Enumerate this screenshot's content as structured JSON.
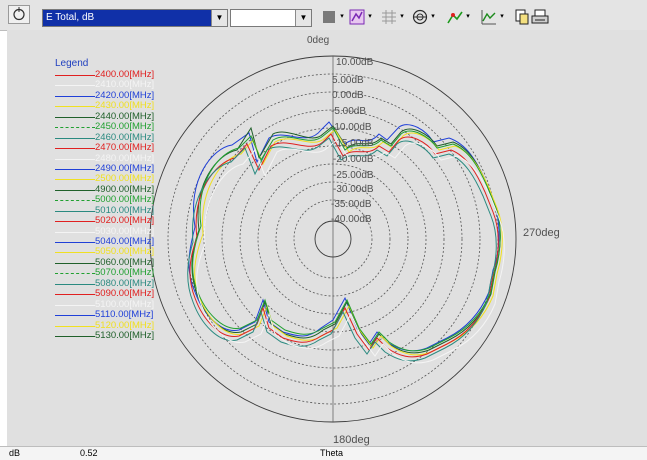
{
  "toolbar": {
    "pick_button_icon": "cursor-pick-icon",
    "quantity_select": {
      "value": "E Total, dB",
      "arrow": "▼"
    },
    "secondary_select": {
      "value": "",
      "arrow": "▼"
    },
    "dropdown_arrow": "▾",
    "buttons": [
      {
        "name": "stop-button",
        "icon": "gray-square-icon",
        "color": "#7a7a7a"
      },
      {
        "name": "plot-type-button",
        "icon": "plot-type-icon",
        "color": "#7a28b4"
      },
      {
        "name": "grid-style-button",
        "icon": "grid-style-icon",
        "color": "#9a9a9a"
      },
      {
        "name": "polar-button",
        "icon": "polar-icon",
        "color": "#2b2b2b"
      },
      {
        "name": "marker-button",
        "icon": "marker-icon",
        "color": "#1c9a1c"
      },
      {
        "name": "trace-button",
        "icon": "trace-icon",
        "color": "#1c8a1c"
      }
    ],
    "copy_icon": "copy-icon",
    "print_icon": "printer-icon"
  },
  "plot": {
    "background": "#e0e0e0",
    "top_label": "0deg",
    "right_label": "270deg",
    "bottom_label": "180deg",
    "ring_labels": [
      "10.00dB",
      "5.00dB",
      "0.00dB",
      "-5.00dB",
      "-10.00dB",
      "-15.00dB",
      "-20.00dB",
      "-25.00dB",
      "-30.00dB",
      "-35.00dB",
      "-40.00dB"
    ]
  },
  "legend": {
    "title": "Legend",
    "items": [
      {
        "label": "2400.00[MHz]",
        "color": "#e02020",
        "style": "solid"
      },
      {
        "label": "2410.00[MHz]",
        "color": "#f4f4f4",
        "style": "solid"
      },
      {
        "label": "2420.00[MHz]",
        "color": "#2040d8",
        "style": "solid"
      },
      {
        "label": "2430.00[MHz]",
        "color": "#f0e020",
        "style": "solid"
      },
      {
        "label": "2440.00[MHz]",
        "color": "#20602a",
        "style": "solid"
      },
      {
        "label": "2450.00[MHz]",
        "color": "#20a030",
        "style": "dashed"
      },
      {
        "label": "2460.00[MHz]",
        "color": "#2a8a80",
        "style": "solid"
      },
      {
        "label": "2470.00[MHz]",
        "color": "#e02020",
        "style": "solid"
      },
      {
        "label": "2480.00[MHz]",
        "color": "#f4f4f4",
        "style": "solid"
      },
      {
        "label": "2490.00[MHz]",
        "color": "#2040d8",
        "style": "solid"
      },
      {
        "label": "2500.00[MHz]",
        "color": "#f0e020",
        "style": "solid"
      },
      {
        "label": "4900.00[MHz]",
        "color": "#20602a",
        "style": "solid"
      },
      {
        "label": "5000.00[MHz]",
        "color": "#20a030",
        "style": "dashed"
      },
      {
        "label": "5010.00[MHz]",
        "color": "#2a8a80",
        "style": "solid"
      },
      {
        "label": "5020.00[MHz]",
        "color": "#e02020",
        "style": "solid"
      },
      {
        "label": "5030.00[MHz]",
        "color": "#f4f4f4",
        "style": "solid"
      },
      {
        "label": "5040.00[MHz]",
        "color": "#2040d8",
        "style": "solid"
      },
      {
        "label": "5050.00[MHz]",
        "color": "#f0e020",
        "style": "solid"
      },
      {
        "label": "5060.00[MHz]",
        "color": "#20602a",
        "style": "solid"
      },
      {
        "label": "5070.00[MHz]",
        "color": "#20a030",
        "style": "dashed"
      },
      {
        "label": "5080.00[MHz]",
        "color": "#2a8a80",
        "style": "solid"
      },
      {
        "label": "5090.00[MHz]",
        "color": "#e02020",
        "style": "solid"
      },
      {
        "label": "5100.00[MHz]",
        "color": "#f4f4f4",
        "style": "solid"
      },
      {
        "label": "5110.00[MHz]",
        "color": "#2040d8",
        "style": "solid"
      },
      {
        "label": "5120.00[MHz]",
        "color": "#f0e020",
        "style": "solid"
      },
      {
        "label": "5130.00[MHz]",
        "color": "#20602a",
        "style": "solid"
      }
    ]
  },
  "status": {
    "unit": "dB",
    "value": "0.52",
    "axis": "Theta"
  }
}
